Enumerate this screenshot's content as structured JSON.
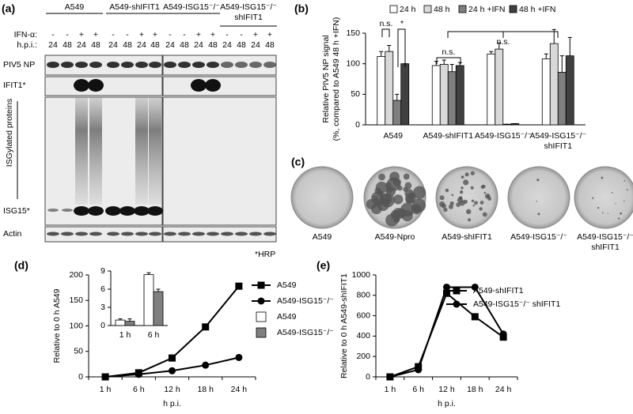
{
  "panel_labels": [
    "(a)",
    "(b)",
    "(c)",
    "(d)",
    "(e)"
  ],
  "blot": {
    "groups": [
      "A549",
      "A549-shIFIT1",
      "A549-ISG15⁻/⁻",
      [
        "A549-ISG15⁻/⁻",
        "shIFIT1"
      ]
    ],
    "ifn_label": "IFN-α:",
    "hpi_label": "h.p.i.:",
    "ifn": [
      "-",
      "-",
      "+",
      "+"
    ],
    "hpi": [
      "24",
      "48",
      "24",
      "48"
    ],
    "rows": [
      "PIV5 NP",
      "IFIT1*",
      "ISG15*",
      "Actin"
    ],
    "side_label": "ISGylated proteins",
    "footnote": "*HRP"
  },
  "plaques": {
    "labels": [
      "A549",
      "A549-Npro",
      "A549-shIFIT1",
      "A549-ISG15⁻/⁻",
      [
        "A549-ISG15⁻/⁻",
        "shIFIT1"
      ]
    ]
  },
  "chart_data": [
    {
      "type": "bar",
      "y_label": [
        "Relative PIV5  NP signal",
        "(%, compared to A549 48 h +IFN)"
      ],
      "categories": [
        "A549",
        "A549-shIFIT1",
        "A549-ISG15⁻/⁻",
        [
          "A549-ISG15⁻/⁻",
          "shIFIT1"
        ]
      ],
      "series": [
        {
          "name": "24 h",
          "color": "#ffffff",
          "values": [
            112,
            97,
            116,
            108
          ],
          "errors": [
            8,
            7,
            4,
            8
          ]
        },
        {
          "name": "48 h",
          "color": "#d9d9d9",
          "values": [
            120,
            99,
            124,
            133
          ],
          "errors": [
            10,
            7,
            10,
            23
          ]
        },
        {
          "name": "24 h +IFN",
          "color": "#7f7f7f",
          "values": [
            40,
            87,
            1,
            86
          ],
          "errors": [
            10,
            12,
            0,
            27
          ]
        },
        {
          "name": "48 h +IFN",
          "color": "#404040",
          "values": [
            100,
            97,
            2,
            113
          ],
          "errors": [
            0,
            5,
            0,
            30
          ]
        }
      ],
      "ylim": [
        0,
        150
      ],
      "yticks": [
        0,
        50,
        100,
        150
      ],
      "annotations": [
        "n.s.",
        "*",
        "n.s.",
        "n.s."
      ],
      "legend": "top"
    },
    {
      "type": "line",
      "x_label": "h p.i.",
      "y_label": "Relative to 0 h A549",
      "categories": [
        "1 h",
        "6 h",
        "12 h",
        "18 h",
        "24 h"
      ],
      "series": [
        {
          "name": "A549",
          "color": "#000000",
          "marker": "square",
          "values": [
            0,
            8,
            37,
            98,
            178
          ]
        },
        {
          "name": "A549-ISG15⁻/⁻",
          "color": "#000000",
          "marker": "circle",
          "values": [
            0,
            5,
            12,
            23,
            38
          ]
        }
      ],
      "ylim": [
        0,
        200
      ],
      "yticks": [
        0,
        50,
        100,
        150,
        200
      ],
      "inset": {
        "type": "bar",
        "categories": [
          "1 h",
          "6 h"
        ],
        "series": [
          {
            "name": "A549",
            "color": "#ffffff",
            "values": [
              0.9,
              8.4
            ],
            "errors": [
              0.2,
              0.3
            ]
          },
          {
            "name": "A549-ISG15⁻/⁻",
            "color": "#7f7f7f",
            "values": [
              0.7,
              5.6
            ],
            "errors": [
              0.4,
              0.4
            ]
          }
        ],
        "ylim": [
          0,
          9
        ],
        "yticks": [
          0,
          3,
          6,
          9
        ]
      }
    },
    {
      "type": "line",
      "x_label": "h p.i.",
      "y_label": "Relative to 0 h A549-shIFIT1",
      "categories": [
        "1 h",
        "6 h",
        "12 h",
        "18 h",
        "24 h"
      ],
      "series": [
        {
          "name": "A549-shIFIT1",
          "color": "#000000",
          "marker": "square",
          "values": [
            0,
            100,
            820,
            590,
            390
          ]
        },
        {
          "name": "A549-ISG15⁻/⁻ shIFIT1",
          "color": "#000000",
          "marker": "circle",
          "values": [
            0,
            70,
            880,
            880,
            420
          ]
        }
      ],
      "ylim": [
        0,
        1000
      ],
      "yticks": [
        0,
        200,
        400,
        600,
        800,
        1000
      ]
    }
  ]
}
